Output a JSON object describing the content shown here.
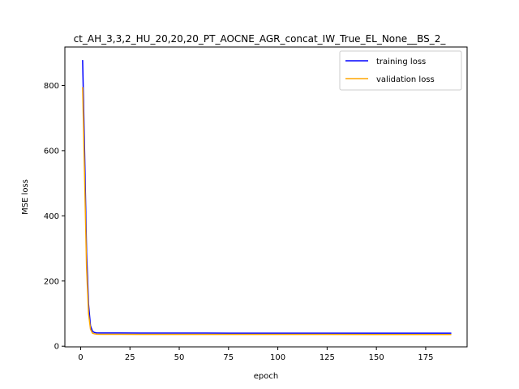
{
  "chart_data": {
    "type": "line",
    "title": "ct_AH_3,3,2_HU_20,20,20_PT_AOCNE_AGR_concat_IW_True_EL_None__BS_2_",
    "xlabel": "epoch",
    "ylabel": "MSE loss",
    "xlim": [
      -8,
      196
    ],
    "ylim": [
      -2,
      918
    ],
    "xticks": [
      0,
      25,
      50,
      75,
      100,
      125,
      150,
      175
    ],
    "yticks": [
      0,
      200,
      400,
      600,
      800
    ],
    "grid": false,
    "legend_position": "top-right",
    "series": [
      {
        "name": "training loss",
        "color": "#0000ff",
        "x": [
          1,
          2,
          3,
          4,
          5,
          6,
          7,
          8,
          10,
          15,
          20,
          30,
          50,
          75,
          100,
          125,
          150,
          175,
          188
        ],
        "y": [
          878,
          600,
          290,
          130,
          62,
          46,
          42,
          41,
          40.5,
          40.5,
          40.5,
          40.3,
          40.2,
          40.1,
          40.1,
          40.0,
          40.0,
          40.0,
          40.0
        ]
      },
      {
        "name": "validation loss",
        "color": "#ffa500",
        "x": [
          1,
          2,
          3,
          4,
          5,
          6,
          7,
          8,
          10,
          15,
          20,
          30,
          50,
          75,
          100,
          125,
          150,
          175,
          188
        ],
        "y": [
          795,
          520,
          240,
          100,
          52,
          40,
          38,
          37,
          36.5,
          36.5,
          36.4,
          36.3,
          36.2,
          36.2,
          36.1,
          36.1,
          36.0,
          36.0,
          36.0
        ]
      }
    ]
  }
}
